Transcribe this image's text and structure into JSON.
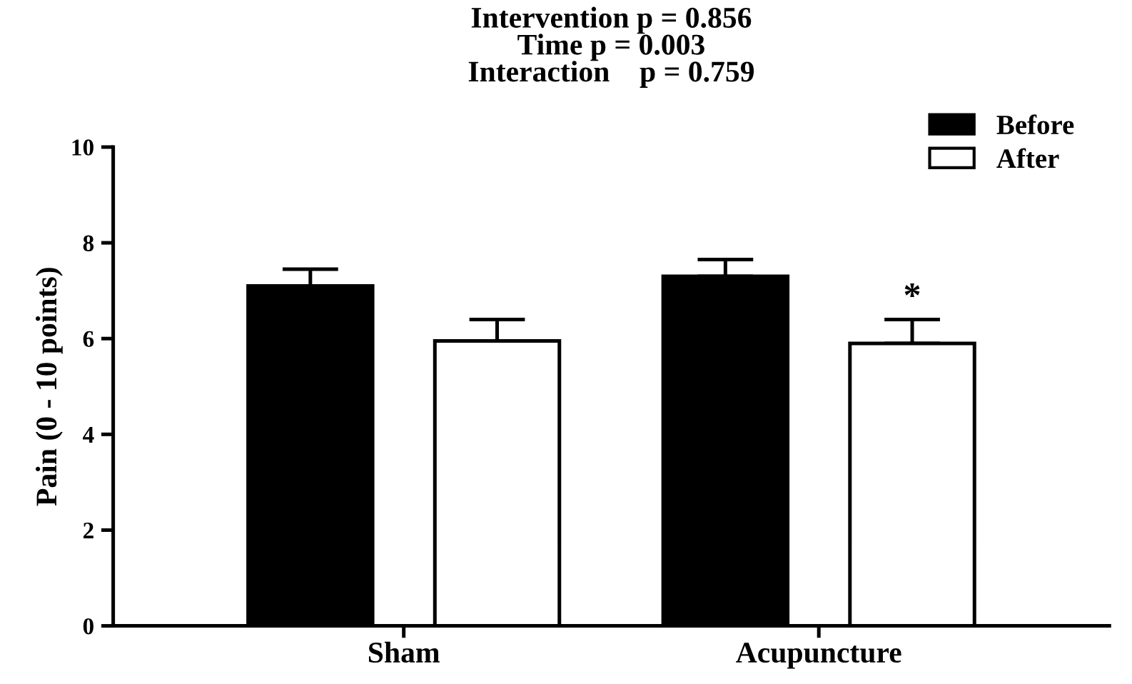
{
  "chart_data": {
    "type": "bar",
    "title": "Intervention p = 0.856\nTime p = 0.003\nInteraction    p = 0.759",
    "ylabel": "Pain (0 - 10 points)",
    "categories": [
      "Sham",
      "Acupuncture"
    ],
    "series": [
      {
        "name": "Before",
        "color": "#000000",
        "values": [
          7.1,
          7.3
        ],
        "errors": [
          0.35,
          0.35
        ]
      },
      {
        "name": "After",
        "color": "#ffffff",
        "values": [
          5.95,
          5.9
        ],
        "errors": [
          0.45,
          0.5
        ],
        "value_labels": [
          null,
          "*"
        ]
      }
    ],
    "ylim": [
      0,
      10
    ],
    "yticks": [
      0,
      2,
      4,
      6,
      8,
      10
    ],
    "grid": false,
    "legend": "top right"
  }
}
